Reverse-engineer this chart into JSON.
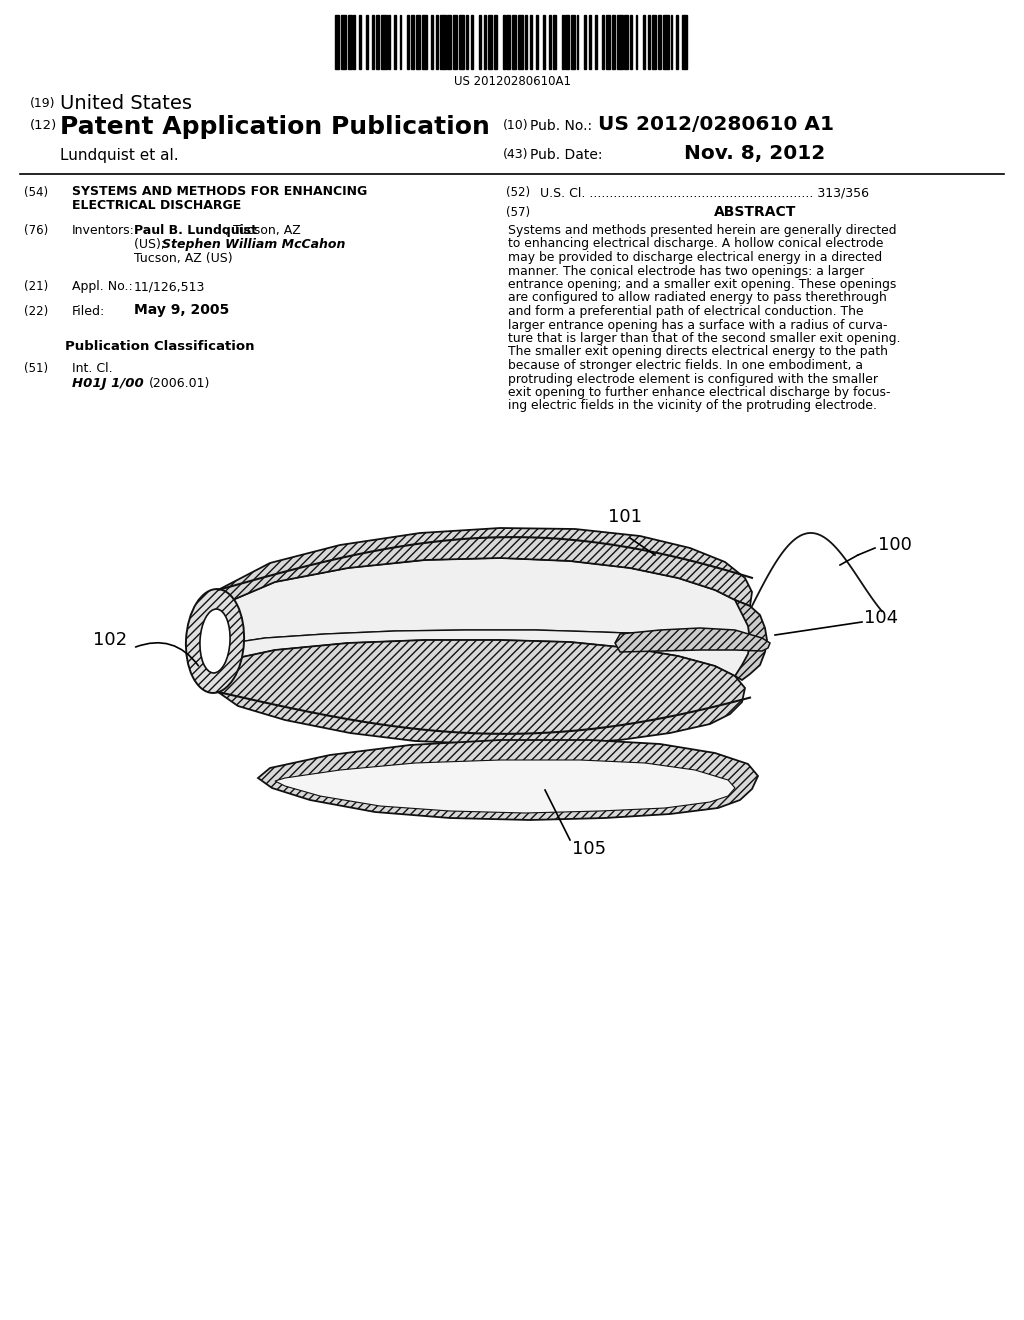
{
  "background_color": "#ffffff",
  "barcode_text": "US 20120280610A1",
  "abstract_lines": [
    "Systems and methods presented herein are generally directed",
    "to enhancing electrical discharge. A hollow conical electrode",
    "may be provided to discharge electrical energy in a directed",
    "manner. The conical electrode has two openings: a larger",
    "entrance opening; and a smaller exit opening. These openings",
    "are configured to allow radiated energy to pass therethrough",
    "and form a preferential path of electrical conduction. The",
    "larger entrance opening has a surface with a radius of curva-",
    "ture that is larger than that of the second smaller exit opening.",
    "The smaller exit opening directs electrical energy to the path",
    "because of stronger electric fields. In one embodiment, a",
    "protruding electrode element is configured with the smaller",
    "exit opening to further enhance electrical discharge by focus-",
    "ing electric fields in the vicinity of the protruding electrode."
  ],
  "outline_color": "#111111",
  "hatch_color": "#777777",
  "fill_light": "#e8e8e8",
  "fill_white": "#f8f8f8"
}
